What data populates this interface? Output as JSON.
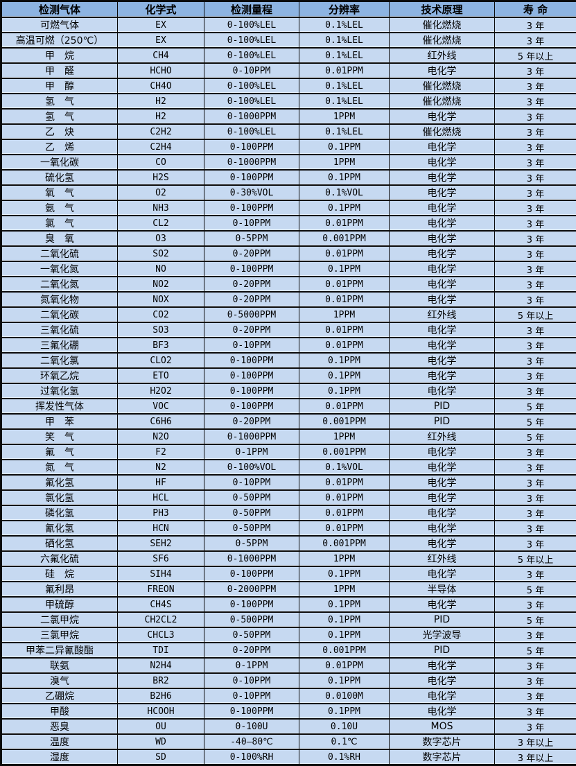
{
  "colors": {
    "header_bg": "#8DB4E2",
    "row_bg": "#C6D9F1",
    "border": "#0A0A0A",
    "text": "#000000"
  },
  "chart_data": {
    "type": "table",
    "columns": [
      "检测气体",
      "化学式",
      "检测量程",
      "分辨率",
      "技术原理",
      "寿 命"
    ],
    "rows": [
      [
        "可燃气体",
        "EX",
        "0-100%LEL",
        "0.1%LEL",
        "催化燃烧",
        "3 年"
      ],
      [
        "高温可燃（250℃）",
        "EX",
        "0-100%LEL",
        "0.1%LEL",
        "催化燃烧",
        "3 年"
      ],
      [
        "甲　烷",
        "CH4",
        "0-100%LEL",
        "0.1%LEL",
        "红外线",
        "5 年以上"
      ],
      [
        "甲　醛",
        "HCHO",
        "0-10PPM",
        "0.01PPM",
        "电化学",
        "3 年"
      ],
      [
        "甲　醇",
        "CH4O",
        "0-100%LEL",
        "0.1%LEL",
        "催化燃烧",
        "3 年"
      ],
      [
        "氢　气",
        "H2",
        "0-100%LEL",
        "0.1%LEL",
        "催化燃烧",
        "3 年"
      ],
      [
        "氢　气",
        "H2",
        "0-1000PPM",
        "1PPM",
        "电化学",
        "3 年"
      ],
      [
        "乙　炔",
        "C2H2",
        "0-100%LEL",
        "0.1%LEL",
        "催化燃烧",
        "3 年"
      ],
      [
        "乙　烯",
        "C2H4",
        "0-100PPM",
        "0.1PPM",
        "电化学",
        "3 年"
      ],
      [
        "一氧化碳",
        "CO",
        "0-1000PPM",
        "1PPM",
        "电化学",
        "3 年"
      ],
      [
        "硫化氢",
        "H2S",
        "0-100PPM",
        "0.1PPM",
        "电化学",
        "3 年"
      ],
      [
        "氧　气",
        "O2",
        "0-30%VOL",
        "0.1%VOL",
        "电化学",
        "3 年"
      ],
      [
        "氨　气",
        "NH3",
        "0-100PPM",
        "0.1PPM",
        "电化学",
        "3 年"
      ],
      [
        "氯　气",
        "CL2",
        "0-10PPM",
        "0.01PPM",
        "电化学",
        "3 年"
      ],
      [
        "臭　氧",
        "O3",
        "0-5PPM",
        "0.001PPM",
        "电化学",
        "3 年"
      ],
      [
        "二氧化硫",
        "SO2",
        "0-20PPM",
        "0.01PPM",
        "电化学",
        "3 年"
      ],
      [
        "一氧化氮",
        "NO",
        "0-100PPM",
        "0.1PPM",
        "电化学",
        "3 年"
      ],
      [
        "二氧化氮",
        "NO2",
        "0-20PPM",
        "0.01PPM",
        "电化学",
        "3 年"
      ],
      [
        "氮氧化物",
        "NOX",
        "0-20PPM",
        "0.01PPM",
        "电化学",
        "3 年"
      ],
      [
        "二氧化碳",
        "CO2",
        "0-5000PPM",
        "1PPM",
        "红外线",
        "5 年以上"
      ],
      [
        "三氧化硫",
        "SO3",
        "0-20PPM",
        "0.01PPM",
        "电化学",
        "3 年"
      ],
      [
        "三氟化硼",
        "BF3",
        "0-10PPM",
        "0.01PPM",
        "电化学",
        "3 年"
      ],
      [
        "二氧化氯",
        "CLO2",
        "0-100PPM",
        "0.1PPM",
        "电化学",
        "3 年"
      ],
      [
        "环氧乙烷",
        "ETO",
        "0-100PPM",
        "0.1PPM",
        "电化学",
        "3 年"
      ],
      [
        "过氧化氢",
        "H2O2",
        "0-100PPM",
        "0.1PPM",
        "电化学",
        "3 年"
      ],
      [
        "挥发性气体",
        "VOC",
        "0-100PPM",
        "0.01PPM",
        "PID",
        "5 年"
      ],
      [
        "甲　苯",
        "C6H6",
        "0-20PPM",
        "0.001PPM",
        "PID",
        "5 年"
      ],
      [
        "笑　气",
        "N2O",
        "0-1000PPM",
        "1PPM",
        "红外线",
        "5 年"
      ],
      [
        "氟　气",
        "F2",
        "0-1PPM",
        "0.001PPM",
        "电化学",
        "3 年"
      ],
      [
        "氮　气",
        "N2",
        "0-100%VOL",
        "0.1%VOL",
        "电化学",
        "3 年"
      ],
      [
        "氟化氢",
        "HF",
        "0-10PPM",
        "0.01PPM",
        "电化学",
        "3 年"
      ],
      [
        "氯化氢",
        "HCL",
        "0-50PPM",
        "0.01PPM",
        "电化学",
        "3 年"
      ],
      [
        "磷化氢",
        "PH3",
        "0-50PPM",
        "0.01PPM",
        "电化学",
        "3 年"
      ],
      [
        "氰化氢",
        "HCN",
        "0-50PPM",
        "0.01PPM",
        "电化学",
        "3 年"
      ],
      [
        "硒化氢",
        "SEH2",
        "0-5PPM",
        "0.001PPM",
        "电化学",
        "3 年"
      ],
      [
        "六氟化硫",
        "SF6",
        "0-1000PPM",
        "1PPM",
        "红外线",
        "5 年以上"
      ],
      [
        "硅　烷",
        "SIH4",
        "0-100PPM",
        "0.1PPM",
        "电化学",
        "3 年"
      ],
      [
        "氟利昂",
        "FREON",
        "0-2000PPM",
        "1PPM",
        "半导体",
        "5 年"
      ],
      [
        "甲硫醇",
        "CH4S",
        "0-100PPM",
        "0.1PPM",
        "电化学",
        "3 年"
      ],
      [
        "二氯甲烷",
        "CH2CL2",
        "0-500PPM",
        "0.1PPM",
        "PID",
        "5 年"
      ],
      [
        "三氯甲烷",
        "CHCL3",
        "0-50PPM",
        "0.1PPM",
        "光学波导",
        "3 年"
      ],
      [
        "甲苯二异氰酸酯",
        "TDI",
        "0-20PPM",
        "0.001PPM",
        "PID",
        "5 年"
      ],
      [
        "联氨",
        "N2H4",
        "0-1PPM",
        "0.01PPM",
        "电化学",
        "3 年"
      ],
      [
        "溴气",
        "BR2",
        "0-10PPM",
        "0.1PPM",
        "电化学",
        "3 年"
      ],
      [
        "乙硼烷",
        "B2H6",
        "0-10PPM",
        "0.0100M",
        "电化学",
        "3 年"
      ],
      [
        "甲酸",
        "HCOOH",
        "0-100PPM",
        "0.1PPM",
        "电化学",
        "3 年"
      ],
      [
        "恶臭",
        "OU",
        "0-100U",
        "0.10U",
        "MOS",
        "3 年"
      ],
      [
        "温度",
        "WD",
        "-40—80℃",
        "0.1℃",
        "数字芯片",
        "3 年以上"
      ],
      [
        "湿度",
        "SD",
        "0-100%RH",
        "0.1%RH",
        "数字芯片",
        "3 年以上"
      ]
    ]
  }
}
